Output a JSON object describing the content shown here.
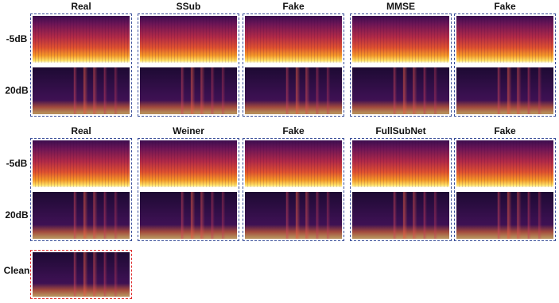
{
  "groups": [
    {
      "columns": [
        "Real",
        "SSub",
        "Fake",
        "MMSE",
        "Fake"
      ],
      "rows": [
        "-5dB",
        "20dB"
      ]
    },
    {
      "columns": [
        "Real",
        "Weiner",
        "Fake",
        "FullSubNet",
        "Fake"
      ],
      "rows": [
        "-5dB",
        "20dB"
      ]
    }
  ],
  "clean": {
    "label": "Clean"
  }
}
